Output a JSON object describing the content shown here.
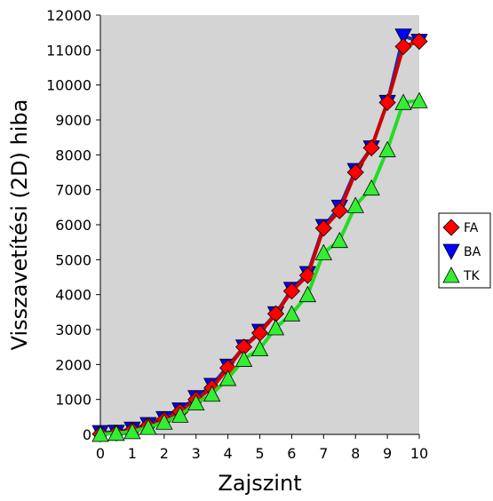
{
  "chart_data": {
    "type": "line",
    "title": "",
    "xlabel": "Zajszint",
    "ylabel": "Visszavetítési (2D) hiba",
    "xlim": [
      0,
      10
    ],
    "ylim": [
      0,
      12000
    ],
    "x_ticks": [
      0,
      1,
      2,
      3,
      4,
      5,
      6,
      7,
      8,
      9,
      10
    ],
    "y_ticks": [
      0,
      1000,
      2000,
      3000,
      4000,
      5000,
      6000,
      7000,
      8000,
      9000,
      10000,
      11000,
      12000
    ],
    "grid": false,
    "plot_background": "#d4d4d4",
    "legend_position": "right",
    "x": [
      0,
      0.5,
      1,
      1.5,
      2,
      2.5,
      3,
      3.5,
      4,
      4.5,
      5,
      5.5,
      6,
      6.5,
      7,
      7.5,
      8,
      8.5,
      9,
      9.5,
      10
    ],
    "series": [
      {
        "name": "BA",
        "color": "#0000ff",
        "line_color": "#1f2fb0",
        "marker": "triangle-down",
        "values": [
          50,
          60,
          150,
          280,
          450,
          700,
          1050,
          1400,
          1950,
          2500,
          2950,
          3450,
          4150,
          4600,
          5950,
          6500,
          7550,
          8200,
          9500,
          11400,
          11250
        ]
      },
      {
        "name": "FA",
        "color": "#ff0000",
        "line_color": "#cc0000",
        "marker": "diamond",
        "values": [
          10,
          40,
          120,
          250,
          420,
          650,
          1000,
          1330,
          1900,
          2500,
          2900,
          3450,
          4100,
          4550,
          5900,
          6400,
          7500,
          8200,
          9500,
          11100,
          11250
        ]
      },
      {
        "name": "TK",
        "color": "#33ee33",
        "line_color": "#22dd22",
        "marker": "triangle-up",
        "values": [
          0,
          30,
          80,
          200,
          350,
          550,
          900,
          1150,
          1600,
          2150,
          2450,
          3050,
          3450,
          4000,
          5200,
          5550,
          6550,
          7050,
          8150,
          9500,
          9550
        ]
      }
    ],
    "legend": [
      "FA",
      "BA",
      "TK"
    ]
  }
}
